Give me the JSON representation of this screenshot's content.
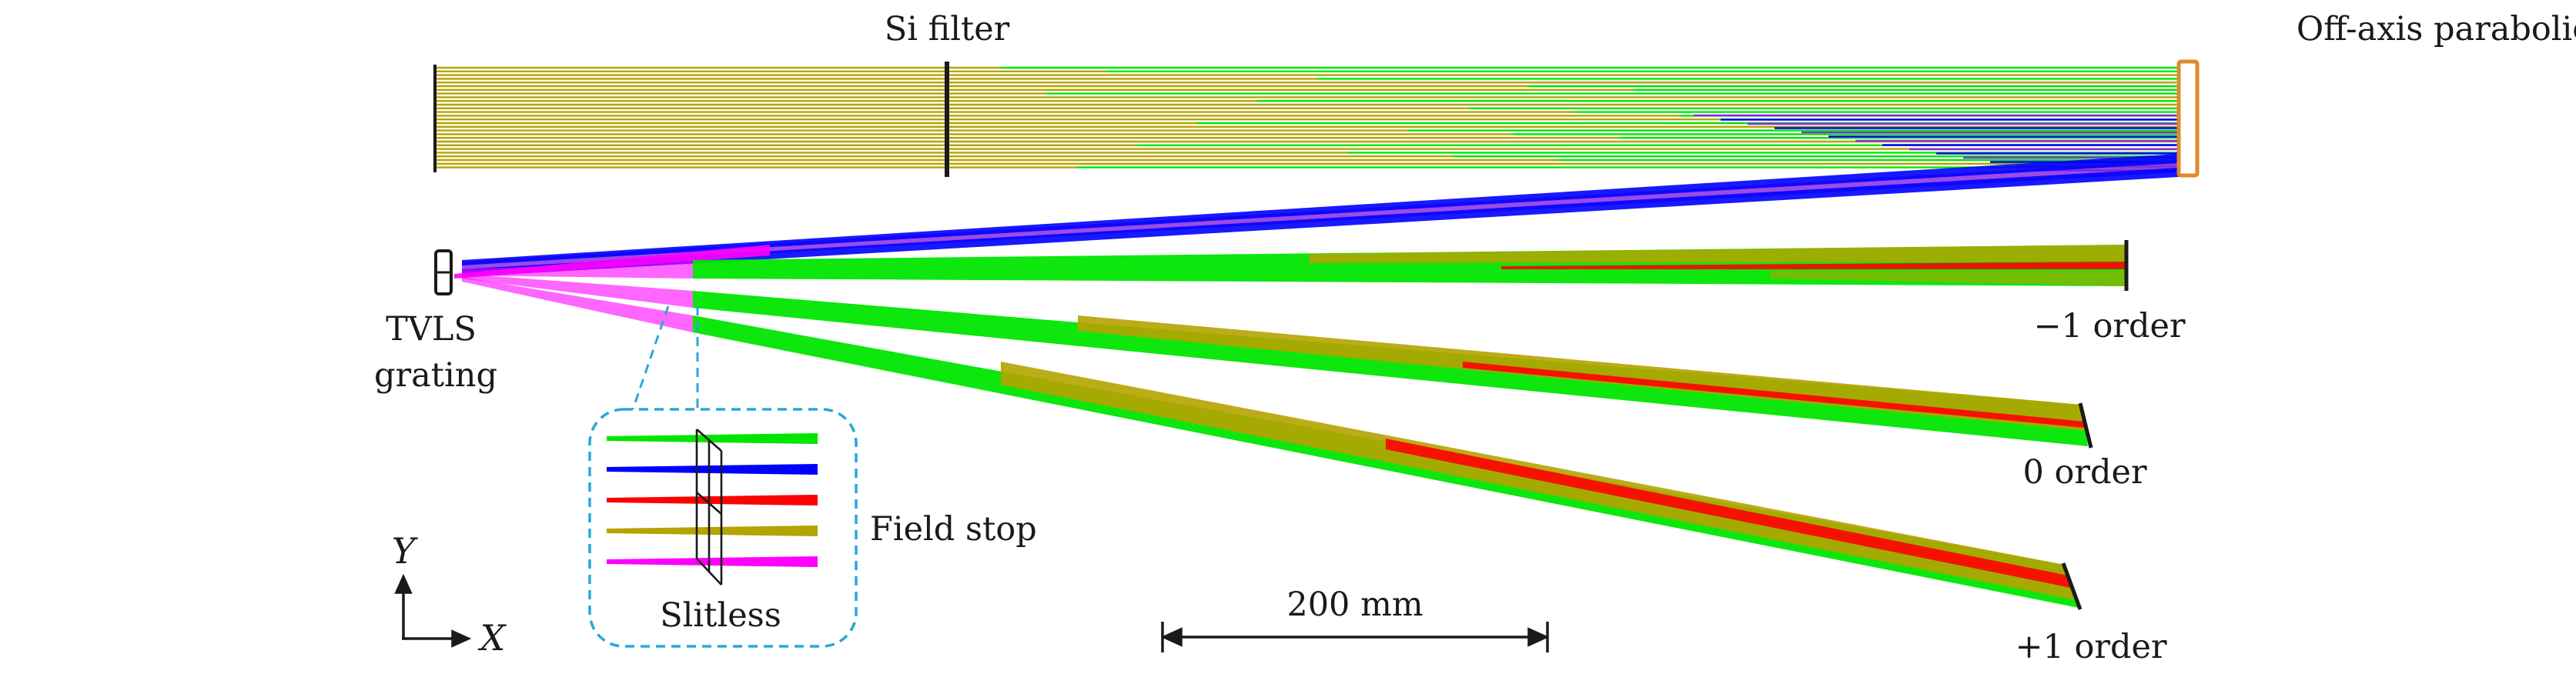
{
  "labels": {
    "si_filter": "Si filter",
    "mirror": "Off-axis parabolic mirror",
    "grating_line1": "TVLS",
    "grating_line2": "grating",
    "order_minus1": "−1 order",
    "order_zero": "0 order",
    "order_plus1": "+1 order",
    "field_stop": "Field stop",
    "slitless": "Slitless",
    "scale": "200 mm",
    "axis_x": "X",
    "axis_y": "Y"
  },
  "colors": {
    "olive": "#b5a300",
    "green": "#00e600",
    "blue": "#0000ff",
    "red": "#ff0000",
    "magenta": "#ff00ff",
    "violet": "#8a2be2",
    "mirror_orange": "#e08a2a",
    "inset_border": "#2aa8d8",
    "dark": "#1a1a1a"
  },
  "inset_rays": [
    "green",
    "blue",
    "red",
    "olive",
    "magenta"
  ]
}
